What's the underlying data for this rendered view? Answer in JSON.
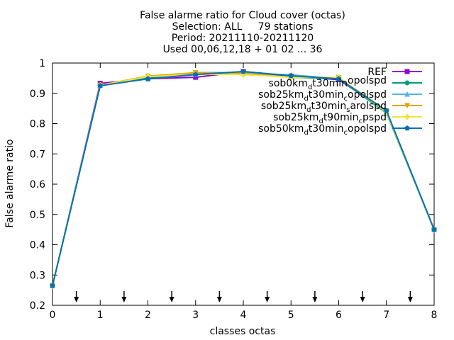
{
  "chart_data": {
    "type": "line",
    "title_lines": [
      "False alarme ratio  for Cloud cover (octas)",
      "Selection: ALL     79 stations",
      "Period: 20211110-20211120",
      "Used 00,06,12,18 + 01 02 ... 36"
    ],
    "xlabel": "classes octas",
    "ylabel": "False alarme ratio",
    "xlim": [
      0,
      8
    ],
    "ylim": [
      0.2,
      1.0
    ],
    "x_ticks": [
      0,
      1,
      2,
      3,
      4,
      5,
      6,
      7,
      8
    ],
    "y_ticks": [
      0.2,
      0.3,
      0.4,
      0.5,
      0.6,
      0.7,
      0.8,
      0.9,
      1.0
    ],
    "y_tick_labels": [
      "0.2",
      "0.3",
      "0.4",
      "0.5",
      "0.6",
      "0.7",
      "0.8",
      "0.9",
      "1"
    ],
    "grid": false,
    "legend_position": "top-right",
    "x": [
      0,
      1,
      2,
      3,
      4,
      5,
      6,
      7,
      8
    ],
    "series": [
      {
        "legend": [
          "REF"
        ],
        "color": "#9400d3",
        "marker": "square",
        "values": [
          0.265,
          0.933,
          0.948,
          0.953,
          0.972,
          0.957,
          0.945,
          0.84,
          0.45
        ]
      },
      {
        "legend": [
          "sob0km",
          "d",
          "t30min",
          "",
          "opolspd"
        ],
        "color": "#009e73",
        "marker": "circle",
        "values": [
          0.265,
          0.925,
          0.952,
          0.968,
          0.968,
          0.953,
          0.948,
          0.835,
          0.45
        ]
      },
      {
        "legend": [
          "sob25km",
          "d",
          "t30min",
          "c",
          "opolspd"
        ],
        "color": "#56b4e9",
        "marker": "triangle",
        "values": [
          0.265,
          0.927,
          0.948,
          0.962,
          0.967,
          0.961,
          0.948,
          0.84,
          0.45
        ]
      },
      {
        "legend": [
          "sob25km",
          "d",
          "t30min",
          "s",
          "arolspd"
        ],
        "color": "#e69f00",
        "marker": "triangle-down",
        "values": [
          0.265,
          0.927,
          0.957,
          0.968,
          0.966,
          0.953,
          0.952,
          0.842,
          0.45
        ]
      },
      {
        "legend": [
          "sob25km",
          "d",
          "t90min",
          "c",
          "pspd"
        ],
        "color": "#f0e442",
        "marker": "diamond",
        "values": [
          0.265,
          0.927,
          0.955,
          0.963,
          0.962,
          0.953,
          0.953,
          0.838,
          0.45
        ]
      },
      {
        "legend": [
          "sob50km",
          "d",
          "t30min",
          "c",
          "opolspd"
        ],
        "color": "#0072b2",
        "marker": "pentagon",
        "values": [
          0.265,
          0.925,
          0.948,
          0.962,
          0.972,
          0.958,
          0.948,
          0.843,
          0.45
        ]
      }
    ],
    "arrow_markers_x": [
      0.5,
      1.5,
      2.5,
      3.5,
      4.5,
      5.5,
      6.5,
      7.5
    ]
  }
}
